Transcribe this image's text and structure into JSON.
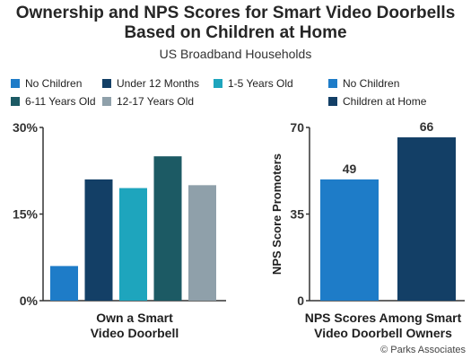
{
  "title_line1": "Ownership and NPS Scores for Smart Video Doorbells",
  "title_line2": "Based on Children at Home",
  "subtitle": "US Broadband Households",
  "credit": "© Parks Associates",
  "colors": {
    "no_children": "#1e7cc8",
    "under_12_months": "#133f66",
    "1_5_years": "#1ea5bd",
    "6_11_years": "#1c5a64",
    "12_17_years": "#8fa0aa",
    "children_at_home": "#133f66",
    "axis": "#333333"
  },
  "chart_data": [
    {
      "type": "bar",
      "xlabel": "Own a Smart Video Doorbell",
      "ylabel": "",
      "ylim": [
        0,
        30
      ],
      "yticks": [
        "0%",
        "15%",
        "30%"
      ],
      "ytick_values": [
        0,
        15,
        30
      ],
      "unit": "%",
      "grid": false,
      "series": [
        {
          "name": "No Children",
          "value": 6,
          "color": "#1e7cc8"
        },
        {
          "name": "Under 12 Months",
          "value": 21,
          "color": "#133f66"
        },
        {
          "name": "1-5 Years Old",
          "value": 19.5,
          "color": "#1ea5bd"
        },
        {
          "name": "6-11 Years Old",
          "value": 25,
          "color": "#1c5a64"
        },
        {
          "name": "12-17 Years Old",
          "value": 20,
          "color": "#8fa0aa"
        }
      ],
      "legend_placement": "top-left"
    },
    {
      "type": "bar",
      "xlabel": "NPS Scores Among Smart Video Doorbell Owners",
      "ylabel": "NPS Score Promoters",
      "ylim": [
        0,
        70
      ],
      "yticks": [
        "0",
        "35",
        "70"
      ],
      "ytick_values": [
        0,
        35,
        70
      ],
      "grid": false,
      "series": [
        {
          "name": "No Children",
          "value": 49,
          "label": "49",
          "color": "#1e7cc8"
        },
        {
          "name": "Children at Home",
          "value": 66,
          "label": "66",
          "color": "#133f66"
        }
      ],
      "legend_placement": "top-right"
    }
  ],
  "left_xcat_line1": "Own a Smart",
  "left_xcat_line2": "Video Doorbell",
  "right_xcat_line1": "NPS Scores Among Smart",
  "right_xcat_line2": "Video Doorbell Owners",
  "legend_left": [
    "No Children",
    "Under 12 Months",
    "1-5 Years Old",
    "6-11 Years Old",
    "12-17 Years Old"
  ],
  "legend_right": [
    "No Children",
    "Children at Home"
  ]
}
